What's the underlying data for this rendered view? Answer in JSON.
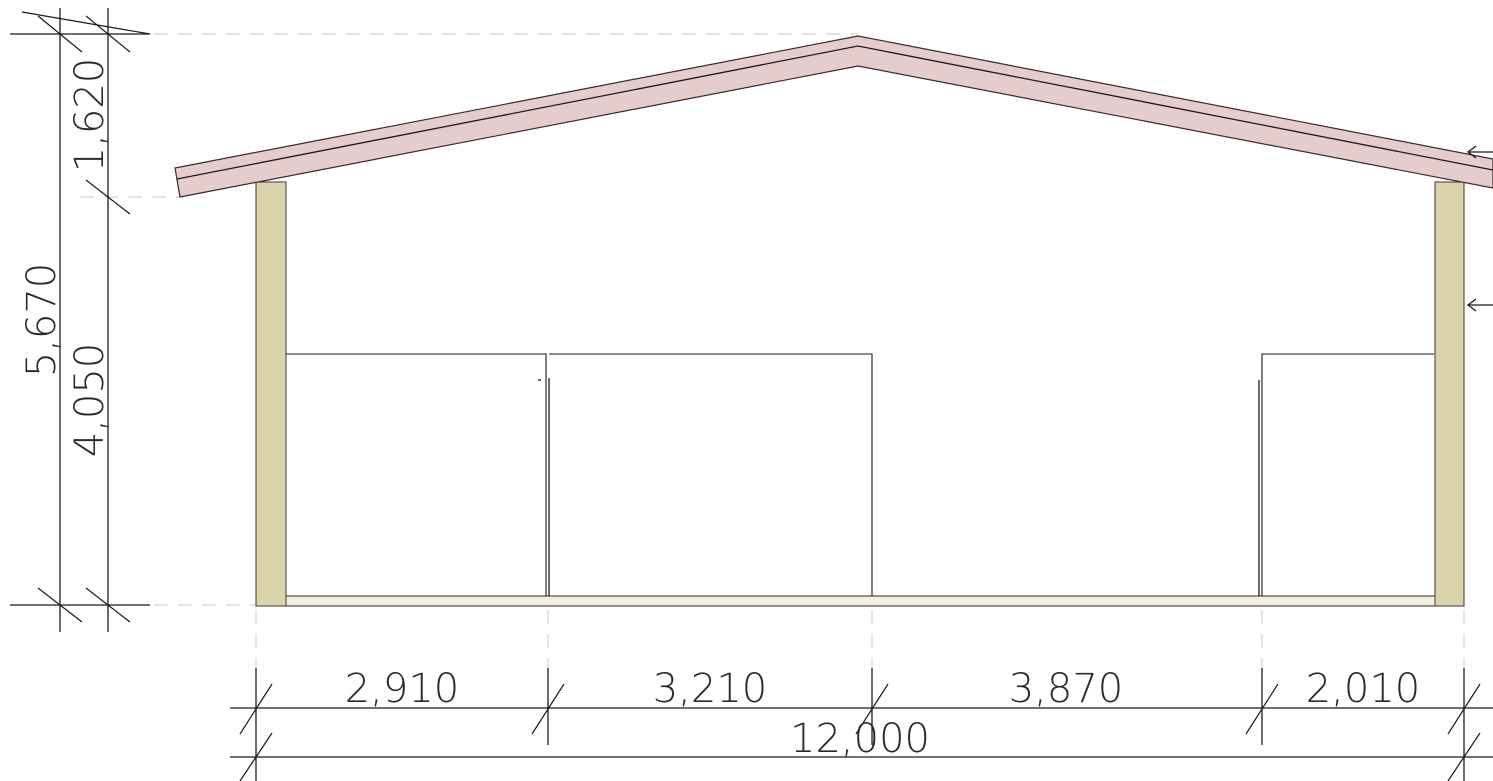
{
  "drawing": {
    "type": "building cross-section (gable roof)",
    "colors": {
      "roof": "#e6cdcd",
      "wall": "#dbd3a9",
      "floor": "#f2efe0",
      "line": "#1a1a1a",
      "extension_line": "#c8c8c8"
    },
    "vertical_dimensions": {
      "total": "5,670",
      "roof_rise": "1,620",
      "wall_height": "4,050"
    },
    "horizontal_dimensions": {
      "segments": [
        "2,910",
        "3,210",
        "3,870",
        "2,010"
      ],
      "total": "12,000"
    },
    "markers": [
      "arrow-left-icon",
      "arrow-left-icon"
    ]
  }
}
